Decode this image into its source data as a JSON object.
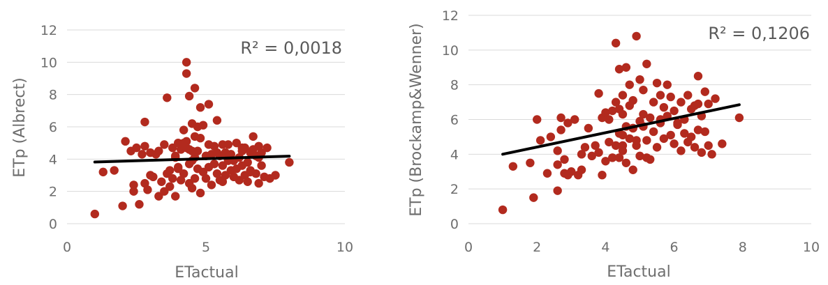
{
  "chart_data": [
    {
      "type": "scatter",
      "xlabel": "ETactual",
      "ylabel": "ETp (Albrect)",
      "xticks": [
        "0",
        "5",
        "10"
      ],
      "yticks": [
        "0",
        "2",
        "4",
        "6",
        "8",
        "10",
        "12"
      ],
      "xlim": [
        0,
        10
      ],
      "ylim": [
        0,
        12
      ],
      "grid": true,
      "point_color": "#b22a1e",
      "trendline_color": "#000000",
      "r2_label": "R² = 0,0018",
      "trendline": {
        "x": [
          1.0,
          8.0
        ],
        "y": [
          3.82,
          4.18
        ]
      },
      "x": [
        1.0,
        1.3,
        1.7,
        2.0,
        2.1,
        2.3,
        2.4,
        2.5,
        2.6,
        2.7,
        2.8,
        2.8,
        2.9,
        3.0,
        3.0,
        3.1,
        3.2,
        3.3,
        3.4,
        3.5,
        3.5,
        3.6,
        3.7,
        3.7,
        3.8,
        3.8,
        3.9,
        3.9,
        4.0,
        4.0,
        4.1,
        4.1,
        4.2,
        4.2,
        4.3,
        4.3,
        4.3,
        4.4,
        4.4,
        4.4,
        4.5,
        4.5,
        4.5,
        4.6,
        4.6,
        4.6,
        4.7,
        4.7,
        4.7,
        4.8,
        4.8,
        4.9,
        4.9,
        5.0,
        5.0,
        5.1,
        5.1,
        5.2,
        5.2,
        5.3,
        5.3,
        5.4,
        5.4,
        5.5,
        5.5,
        5.6,
        5.6,
        5.7,
        5.7,
        5.8,
        5.8,
        5.9,
        5.9,
        6.0,
        6.0,
        6.1,
        6.1,
        6.2,
        6.2,
        6.3,
        6.3,
        6.4,
        6.4,
        6.5,
        6.5,
        6.6,
        6.6,
        6.7,
        6.7,
        6.8,
        6.8,
        6.9,
        6.9,
        7.0,
        7.0,
        7.1,
        7.2,
        7.3,
        7.5,
        8.0,
        4.3,
        4.4,
        4.6,
        4.2,
        4.8,
        3.6,
        2.8,
        4.5,
        5.1,
        4.0,
        6.6,
        6.9,
        6.3,
        5.6,
        5.8,
        3.9,
        4.2,
        2.4,
        3.3,
        5.4
      ],
      "y": [
        0.6,
        3.2,
        3.3,
        1.1,
        5.1,
        4.5,
        2.0,
        4.7,
        1.2,
        4.3,
        2.5,
        4.8,
        2.1,
        3.0,
        4.4,
        2.9,
        4.3,
        1.7,
        2.6,
        4.9,
        2.0,
        3.1,
        3.3,
        2.3,
        4.7,
        2.8,
        4.2,
        1.7,
        3.5,
        5.0,
        4.6,
        2.7,
        3.1,
        4.9,
        10.0,
        9.3,
        5.1,
        2.5,
        3.7,
        4.6,
        6.2,
        2.2,
        3.9,
        8.4,
        5.4,
        2.8,
        6.0,
        3.4,
        4.5,
        1.9,
        5.3,
        3.2,
        6.1,
        4.2,
        2.8,
        3.5,
        7.4,
        4.3,
        2.4,
        3.7,
        4.8,
        6.4,
        3.1,
        4.2,
        2.7,
        4.9,
        3.6,
        4.4,
        3.0,
        4.0,
        4.9,
        3.3,
        4.3,
        2.9,
        3.9,
        5.0,
        3.4,
        4.1,
        2.7,
        3.6,
        4.5,
        3.0,
        4.7,
        2.6,
        3.8,
        4.4,
        3.2,
        4.6,
        5.4,
        3.1,
        4.2,
        2.5,
        4.8,
        3.6,
        4.4,
        2.9,
        4.7,
        2.8,
        3.0,
        3.8,
        4.7,
        7.9,
        4.1,
        5.8,
        7.2,
        7.8,
        6.3,
        4.5,
        4.9,
        3.4,
        3.3,
        4.1,
        4.7,
        2.6,
        3.9,
        4.1,
        5.0,
        2.4,
        4.5,
        4.4
      ]
    },
    {
      "type": "scatter",
      "xlabel": "ETactual",
      "ylabel": "ETp (Brockamp&Wenner)",
      "xticks": [
        "0",
        "2",
        "4",
        "6",
        "8",
        "10"
      ],
      "yticks": [
        "0",
        "2",
        "4",
        "6",
        "8",
        "10",
        "12"
      ],
      "xlim": [
        0,
        10
      ],
      "ylim": [
        0,
        12
      ],
      "grid": true,
      "point_color": "#b22a1e",
      "trendline_color": "#000000",
      "r2_label": "R² = 0,1206",
      "trendline": {
        "x": [
          1.0,
          7.9
        ],
        "y": [
          4.0,
          6.85
        ]
      },
      "x": [
        1.0,
        1.3,
        1.8,
        1.9,
        2.0,
        2.1,
        2.3,
        2.4,
        2.6,
        2.6,
        2.6,
        2.7,
        2.7,
        2.8,
        2.8,
        2.9,
        3.0,
        3.1,
        3.2,
        3.3,
        3.4,
        3.5,
        3.6,
        3.7,
        3.8,
        3.8,
        3.9,
        4.0,
        4.1,
        4.1,
        4.2,
        4.2,
        4.3,
        4.3,
        4.3,
        4.4,
        4.4,
        4.4,
        4.5,
        4.5,
        4.5,
        4.6,
        4.6,
        4.6,
        4.7,
        4.7,
        4.7,
        4.8,
        4.8,
        4.8,
        4.9,
        4.9,
        5.0,
        5.0,
        5.0,
        5.1,
        5.1,
        5.2,
        5.2,
        5.3,
        5.3,
        5.4,
        5.4,
        5.5,
        5.5,
        5.6,
        5.6,
        5.7,
        5.7,
        5.8,
        5.8,
        5.9,
        5.9,
        6.0,
        6.0,
        6.1,
        6.2,
        6.2,
        6.3,
        6.3,
        6.4,
        6.4,
        6.5,
        6.5,
        6.6,
        6.6,
        6.7,
        6.7,
        6.8,
        6.8,
        6.9,
        6.9,
        7.0,
        7.0,
        7.1,
        7.2,
        7.4,
        7.9,
        4.4,
        4.5,
        4.8,
        4.5,
        5.2,
        4.9,
        6.7,
        3.9,
        4.0,
        5.6,
        5.1,
        6.1,
        2.9,
        3.3
      ],
      "y": [
        0.8,
        3.3,
        3.5,
        1.5,
        6.0,
        4.8,
        2.9,
        5.0,
        3.4,
        4.2,
        1.9,
        5.4,
        6.1,
        3.7,
        2.9,
        5.8,
        3.0,
        6.0,
        2.8,
        3.1,
        4.4,
        5.5,
        3.9,
        4.5,
        4.1,
        7.5,
        2.8,
        3.6,
        6.0,
        4.7,
        3.8,
        6.5,
        10.4,
        7.0,
        4.5,
        8.9,
        5.2,
        6.6,
        6.3,
        4.2,
        7.4,
        9.0,
        5.6,
        3.5,
        8.0,
        4.9,
        6.8,
        3.1,
        7.1,
        5.5,
        10.8,
        4.5,
        8.3,
        5.9,
        3.9,
        7.7,
        6.3,
        9.2,
        4.8,
        6.1,
        3.7,
        7.0,
        5.3,
        8.1,
        4.4,
        7.4,
        5.8,
        6.7,
        4.9,
        8.0,
        6.2,
        5.1,
        7.3,
        6.5,
        4.6,
        5.8,
        7.0,
        4.2,
        6.0,
        5.2,
        7.4,
        4.7,
        6.6,
        5.0,
        4.4,
        6.8,
        5.4,
        8.5,
        4.1,
        6.2,
        5.3,
        7.6,
        4.5,
        6.9,
        4.0,
        7.2,
        4.6,
        6.1,
        3.8,
        5.1,
        5.5,
        4.5,
        3.8,
        4.8,
        6.9,
        6.1,
        6.4,
        6.0,
        5.6,
        5.7,
        2.8,
        4.0
      ]
    }
  ]
}
